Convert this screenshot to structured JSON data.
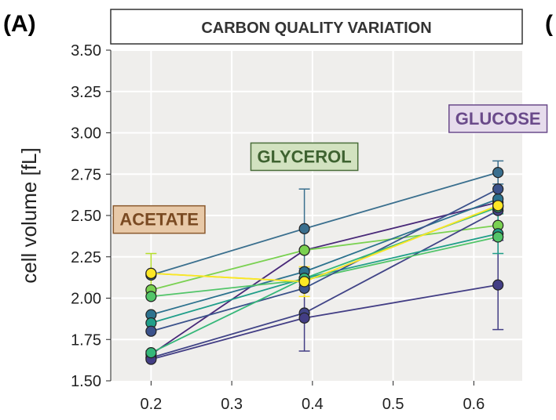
{
  "panel_label": "(A)",
  "next_panel_fragment": "(",
  "chart_data": {
    "type": "line",
    "title": "CARBON QUALITY VARIATION",
    "xlabel": "",
    "ylabel": "cell volume [fL]",
    "xlim": [
      0.15,
      0.66
    ],
    "ylim": [
      1.5,
      3.5
    ],
    "x_ticks": [
      0.2,
      0.3,
      0.4,
      0.5,
      0.6
    ],
    "x_tick_labels": [
      "0.2",
      "0.3",
      "0.4",
      "0.5",
      "0.6"
    ],
    "y_ticks": [
      1.5,
      1.75,
      2.0,
      2.25,
      2.5,
      2.75,
      3.0,
      3.25,
      3.5
    ],
    "y_tick_labels": [
      "1.50",
      "1.75",
      "2.00",
      "2.25",
      "2.50",
      "2.75",
      "3.00",
      "3.25",
      "3.50"
    ],
    "grid": true,
    "x": [
      0.2,
      0.39,
      0.63
    ],
    "annotations": [
      {
        "text": "ACETATE",
        "x": 0.21,
        "y": 2.44,
        "bg": "#e8c9a8",
        "border": "#8a5a2e",
        "color": "#7a4a22"
      },
      {
        "text": "GLYCEROL",
        "x": 0.39,
        "y": 2.82,
        "bg": "#d2e2c0",
        "border": "#4a6e3a",
        "color": "#3e6230"
      },
      {
        "text": "GLUCOSE",
        "x": 0.63,
        "y": 3.05,
        "bg": "#e6dcec",
        "border": "#6a4a8a",
        "color": "#6a4a8a"
      }
    ],
    "series": [
      {
        "color": "#3a6f8e",
        "values": [
          2.14,
          2.42,
          2.76
        ],
        "errors": [
          0.0,
          0.24,
          0.07
        ]
      },
      {
        "color": "#482878",
        "values": [
          1.66,
          2.29,
          2.58
        ],
        "errors": [
          0.02,
          0.0,
          0.0
        ]
      },
      {
        "color": "#b5de2b",
        "values": [
          2.15,
          2.1,
          2.56
        ],
        "errors": [
          0.12,
          0.0,
          0.0
        ]
      },
      {
        "color": "#7ad151",
        "values": [
          2.05,
          2.29,
          2.44
        ],
        "errors": [
          0.0,
          0.0,
          0.0
        ]
      },
      {
        "color": "#414487",
        "values": [
          1.64,
          1.91,
          2.53
        ],
        "errors": [
          0.0,
          0.0,
          0.0
        ]
      },
      {
        "color": "#433e85",
        "values": [
          1.63,
          1.88,
          2.08
        ],
        "errors": [
          0.0,
          0.2,
          0.27
        ]
      },
      {
        "color": "#2c728e",
        "values": [
          1.9,
          2.16,
          2.6
        ],
        "errors": [
          0.0,
          0.0,
          0.0
        ]
      },
      {
        "color": "#1f9e89",
        "values": [
          1.85,
          2.12,
          2.39
        ],
        "errors": [
          0.0,
          0.0,
          0.12
        ]
      },
      {
        "color": "#52c569",
        "values": [
          2.01,
          2.11,
          2.37
        ],
        "errors": [
          0.0,
          0.0,
          0.0
        ]
      },
      {
        "color": "#3b528b",
        "values": [
          1.8,
          2.06,
          2.66
        ],
        "errors": [
          0.0,
          0.0,
          0.0
        ]
      },
      {
        "color": "#35b779",
        "values": [
          1.67,
          2.12,
          2.55
        ],
        "errors": [
          0.0,
          0.0,
          0.0
        ]
      },
      {
        "color": "#fde725",
        "values": [
          2.15,
          2.1,
          2.56
        ],
        "errors": [
          0.0,
          0.09,
          0.0
        ]
      }
    ]
  }
}
